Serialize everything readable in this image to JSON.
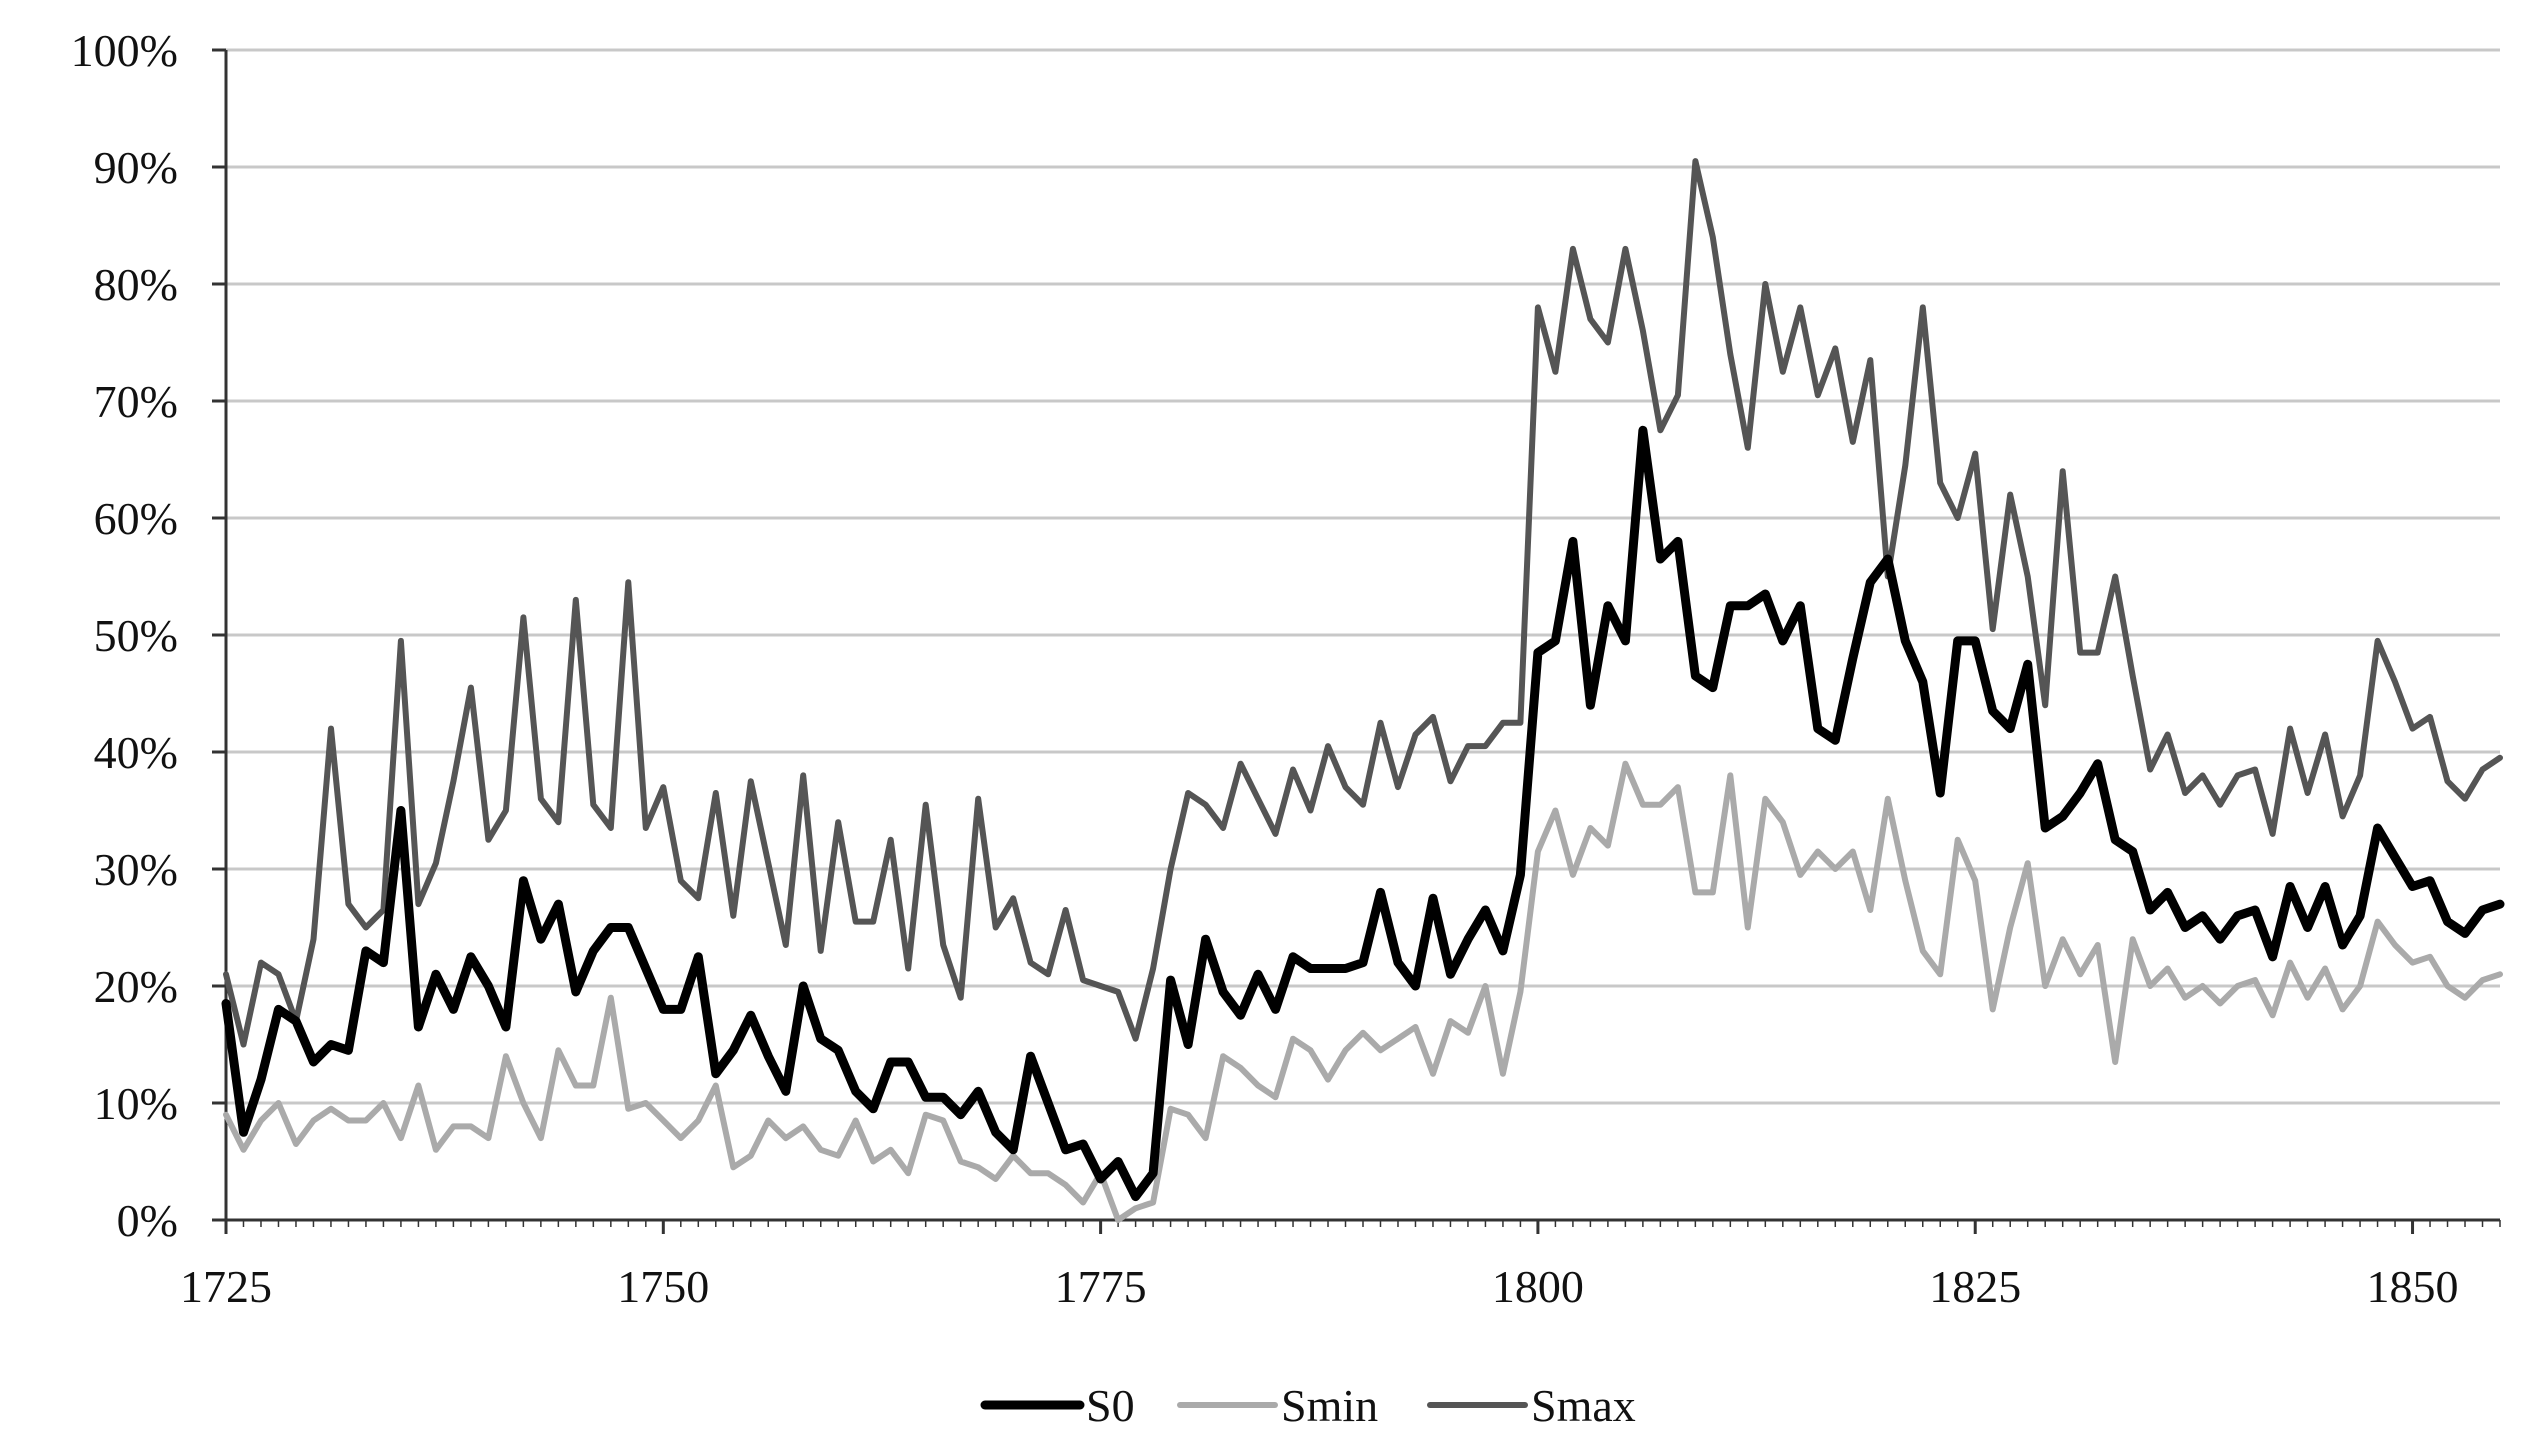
{
  "chart_data": {
    "type": "line",
    "title": "",
    "xlabel": "",
    "ylabel": "",
    "xlim": [
      1725,
      1855
    ],
    "ylim": [
      0,
      100
    ],
    "x_ticks": [
      1725,
      1750,
      1775,
      1800,
      1825,
      1850
    ],
    "y_ticks": [
      0,
      10,
      20,
      30,
      40,
      50,
      60,
      70,
      80,
      90,
      100
    ],
    "y_tick_labels": [
      "0%",
      "10%",
      "20%",
      "30%",
      "40%",
      "50%",
      "60%",
      "70%",
      "80%",
      "90%",
      "100%"
    ],
    "grid": "horizontal",
    "legend_position": "bottom-center",
    "x": [
      1725,
      1726,
      1727,
      1728,
      1729,
      1730,
      1731,
      1732,
      1733,
      1734,
      1735,
      1736,
      1737,
      1738,
      1739,
      1740,
      1741,
      1742,
      1743,
      1744,
      1745,
      1746,
      1747,
      1748,
      1749,
      1750,
      1751,
      1752,
      1753,
      1754,
      1755,
      1756,
      1757,
      1758,
      1759,
      1760,
      1761,
      1762,
      1763,
      1764,
      1765,
      1766,
      1767,
      1768,
      1769,
      1770,
      1771,
      1772,
      1773,
      1774,
      1775,
      1776,
      1777,
      1778,
      1779,
      1780,
      1781,
      1782,
      1783,
      1784,
      1785,
      1786,
      1787,
      1788,
      1789,
      1790,
      1791,
      1792,
      1793,
      1794,
      1795,
      1796,
      1797,
      1798,
      1799,
      1800,
      1801,
      1802,
      1803,
      1804,
      1805,
      1806,
      1807,
      1808,
      1809,
      1810,
      1811,
      1812,
      1813,
      1814,
      1815,
      1816,
      1817,
      1818,
      1819,
      1820,
      1821,
      1822,
      1823,
      1824,
      1825,
      1826,
      1827,
      1828,
      1829,
      1830,
      1831,
      1832,
      1833,
      1834,
      1835,
      1836,
      1837,
      1838,
      1839,
      1840,
      1841,
      1842,
      1843,
      1844,
      1845,
      1846,
      1847,
      1848,
      1849,
      1850,
      1851,
      1852,
      1853,
      1854,
      1855
    ],
    "series": [
      {
        "name": "S0",
        "color": "#000000",
        "values": [
          18.5,
          7.5,
          12.0,
          18.0,
          17.0,
          13.5,
          15.0,
          14.5,
          23.0,
          22.0,
          35.0,
          16.5,
          21.0,
          18.0,
          22.5,
          20.0,
          16.5,
          29.0,
          24.0,
          27.0,
          19.5,
          23.0,
          25.0,
          25.0,
          21.5,
          18.0,
          18.0,
          22.5,
          12.5,
          14.5,
          17.5,
          14.0,
          11.0,
          20.0,
          15.5,
          14.5,
          11.0,
          9.5,
          13.5,
          13.5,
          10.5,
          10.5,
          9.0,
          11.0,
          7.5,
          6.0,
          14.0,
          10.0,
          6.0,
          6.5,
          3.5,
          5.0,
          2.0,
          4.0,
          20.5,
          15.0,
          24.0,
          19.5,
          17.5,
          21.0,
          18.0,
          22.5,
          21.5,
          21.5,
          21.5,
          22.0,
          28.0,
          22.0,
          20.0,
          27.5,
          21.0,
          24.0,
          26.5,
          23.0,
          29.5,
          48.5,
          49.5,
          58.0,
          44.0,
          52.5,
          49.5,
          67.5,
          56.5,
          58.0,
          46.5,
          45.5,
          52.5,
          52.5,
          53.5,
          49.5,
          52.5,
          42.0,
          41.0,
          48.0,
          54.5,
          56.5,
          49.5,
          46.0,
          36.5,
          49.5,
          49.5,
          43.5,
          42.0,
          47.5,
          33.5,
          34.5,
          36.5,
          39.0,
          32.5,
          31.5,
          26.5,
          28.0,
          25.0,
          26.0,
          24.0,
          26.0,
          26.5,
          22.5,
          28.5,
          25.0,
          28.5,
          23.5,
          26.0,
          33.5,
          31.0,
          28.5,
          29.0,
          25.5,
          24.5,
          26.5,
          27.0
        ]
      },
      {
        "name": "Smin",
        "color": "#aaaaaa",
        "values": [
          9.0,
          6.0,
          8.5,
          10.0,
          6.5,
          8.5,
          9.5,
          8.5,
          8.5,
          10.0,
          7.0,
          11.5,
          6.0,
          8.0,
          8.0,
          7.0,
          14.0,
          10.0,
          7.0,
          14.5,
          11.5,
          11.5,
          19.0,
          9.5,
          10.0,
          8.5,
          7.0,
          8.5,
          11.5,
          4.5,
          5.5,
          8.5,
          7.0,
          8.0,
          6.0,
          5.5,
          8.5,
          5.0,
          6.0,
          4.0,
          9.0,
          8.5,
          5.0,
          4.5,
          3.5,
          5.5,
          4.0,
          4.0,
          3.0,
          1.5,
          4.0,
          0.0,
          1.0,
          1.5,
          9.5,
          9.0,
          7.0,
          14.0,
          13.0,
          11.5,
          10.5,
          15.5,
          14.5,
          12.0,
          14.5,
          16.0,
          14.5,
          15.5,
          16.5,
          12.5,
          17.0,
          16.0,
          20.0,
          12.5,
          19.5,
          31.5,
          35.0,
          29.5,
          33.5,
          32.0,
          39.0,
          35.5,
          35.5,
          37.0,
          28.0,
          28.0,
          38.0,
          25.0,
          36.0,
          34.0,
          29.5,
          31.5,
          30.0,
          31.5,
          26.5,
          36.0,
          29.0,
          23.0,
          21.0,
          32.5,
          29.0,
          18.0,
          25.0,
          30.5,
          20.0,
          24.0,
          21.0,
          23.5,
          13.5,
          24.0,
          20.0,
          21.5,
          19.0,
          20.0,
          18.5,
          20.0,
          20.5,
          17.5,
          22.0,
          19.0,
          21.5,
          18.0,
          20.0,
          25.5,
          23.5,
          22.0,
          22.5,
          20.0,
          19.0,
          20.5,
          21.0
        ]
      },
      {
        "name": "Smax",
        "color": "#555555",
        "values": [
          21.0,
          15.0,
          22.0,
          21.0,
          17.0,
          24.0,
          42.0,
          27.0,
          25.0,
          26.5,
          49.5,
          27.0,
          30.5,
          37.5,
          45.5,
          32.5,
          35.0,
          51.5,
          36.0,
          34.0,
          53.0,
          35.5,
          33.5,
          54.5,
          33.5,
          37.0,
          29.0,
          27.5,
          36.5,
          26.0,
          37.5,
          30.5,
          23.5,
          38.0,
          23.0,
          34.0,
          25.5,
          25.5,
          32.5,
          21.5,
          35.5,
          23.5,
          19.0,
          36.0,
          25.0,
          27.5,
          22.0,
          21.0,
          26.5,
          20.5,
          20.0,
          19.5,
          15.5,
          21.5,
          30.0,
          36.5,
          35.5,
          33.5,
          39.0,
          36.0,
          33.0,
          38.5,
          35.0,
          40.5,
          37.0,
          35.5,
          42.5,
          37.0,
          41.5,
          43.0,
          37.5,
          40.5,
          40.5,
          42.5,
          42.5,
          78.0,
          72.5,
          83.0,
          77.0,
          75.0,
          83.0,
          76.0,
          67.5,
          70.5,
          90.5,
          84.0,
          74.0,
          66.0,
          80.0,
          72.5,
          78.0,
          70.5,
          74.5,
          66.5,
          73.5,
          55.0,
          64.5,
          78.0,
          63.0,
          60.0,
          65.5,
          50.5,
          62.0,
          55.0,
          44.0,
          64.0,
          48.5,
          48.5,
          55.0,
          46.5,
          38.5,
          41.5,
          36.5,
          38.0,
          35.5,
          38.0,
          38.5,
          33.0,
          42.0,
          36.5,
          41.5,
          34.5,
          38.0,
          49.5,
          46.0,
          42.0,
          43.0,
          37.5,
          36.0,
          38.5,
          39.5
        ]
      }
    ]
  }
}
